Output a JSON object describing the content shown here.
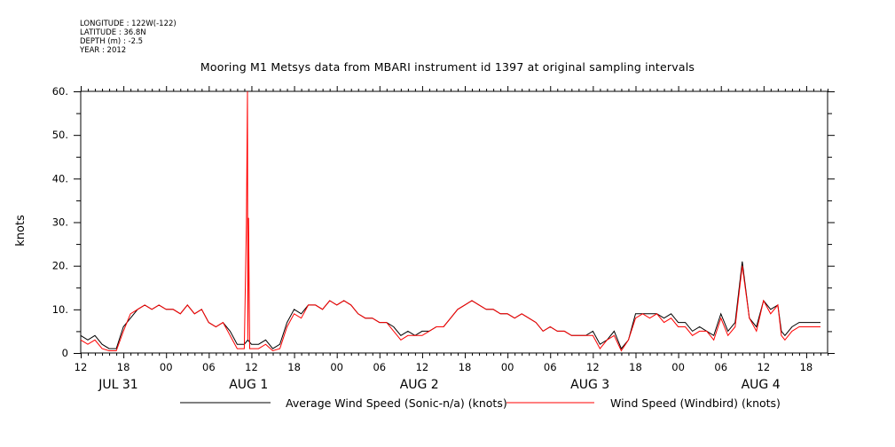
{
  "metadata": {
    "longitude": "LONGITUDE : 122W(-122)",
    "latitude": "LATITUDE : 36.8N",
    "depth": "DEPTH (m) : -2.5",
    "year": "YEAR : 2012"
  },
  "chart_data": {
    "type": "line",
    "title": "Mooring M1 Metsys data from MBARI instrument id 1397 at original sampling intervals",
    "ylabel": "knots",
    "xlabel": "",
    "ylim": [
      0,
      60
    ],
    "yticks": [
      0,
      10.0,
      20.0,
      30.0,
      40.0,
      50.0,
      60.0
    ],
    "ytick_labels": [
      "0",
      "10.",
      "20.",
      "30.",
      "40.",
      "50.",
      "60."
    ],
    "xlim_hours": [
      12,
      117
    ],
    "xticks": [
      {
        "hour": 12,
        "label": "12"
      },
      {
        "hour": 18,
        "label": "18"
      },
      {
        "hour": 24,
        "label": "00"
      },
      {
        "hour": 30,
        "label": "06"
      },
      {
        "hour": 36,
        "label": "12"
      },
      {
        "hour": 42,
        "label": "18"
      },
      {
        "hour": 48,
        "label": "00"
      },
      {
        "hour": 54,
        "label": "06"
      },
      {
        "hour": 60,
        "label": "12"
      },
      {
        "hour": 66,
        "label": "18"
      },
      {
        "hour": 72,
        "label": "00"
      },
      {
        "hour": 78,
        "label": "06"
      },
      {
        "hour": 84,
        "label": "12"
      },
      {
        "hour": 90,
        "label": "18"
      },
      {
        "hour": 96,
        "label": "00"
      },
      {
        "hour": 102,
        "label": "06"
      },
      {
        "hour": 108,
        "label": "12"
      },
      {
        "hour": 114,
        "label": "18"
      }
    ],
    "date_labels": [
      {
        "hour": 17.3,
        "label": "JUL 31"
      },
      {
        "hour": 35.6,
        "label": "AUG  1"
      },
      {
        "hour": 59.6,
        "label": "AUG  2"
      },
      {
        "hour": 83.6,
        "label": "AUG  3"
      },
      {
        "hour": 107.6,
        "label": "AUG  4"
      }
    ],
    "grid": false,
    "legend_position": "bottom",
    "series": [
      {
        "name": "Average Wind Speed (Sonic-n/a) (knots)",
        "color": "#000000",
        "x": [
          12,
          13,
          14,
          15,
          16,
          17,
          18,
          19,
          20,
          21,
          22,
          23,
          24,
          25,
          26,
          27,
          28,
          29,
          30,
          31,
          32,
          33,
          34,
          35,
          35.5,
          36,
          37,
          38,
          39,
          40,
          41,
          42,
          43,
          44,
          45,
          46,
          47,
          48,
          49,
          50,
          51,
          52,
          53,
          54,
          55,
          56,
          57,
          58,
          59,
          60,
          61,
          62,
          63,
          64,
          65,
          66,
          67,
          68,
          69,
          70,
          71,
          72,
          73,
          74,
          75,
          76,
          77,
          78,
          79,
          80,
          81,
          82,
          83,
          84,
          85,
          86,
          87,
          88,
          89,
          90,
          91,
          92,
          93,
          94,
          95,
          96,
          97,
          98,
          99,
          100,
          101,
          102,
          103,
          104,
          105,
          106,
          107,
          108,
          109,
          110,
          110.5,
          111,
          112,
          113,
          114,
          115,
          116
        ],
        "values": [
          4,
          3,
          4,
          2,
          1,
          1,
          6,
          8,
          10,
          11,
          10,
          11,
          10,
          10,
          9,
          11,
          9,
          10,
          7,
          6,
          7,
          5,
          2,
          2,
          3,
          2,
          2,
          3,
          1,
          2,
          7,
          10,
          9,
          11,
          11,
          10,
          12,
          11,
          12,
          11,
          9,
          8,
          8,
          7,
          7,
          6,
          4,
          5,
          4,
          5,
          5,
          6,
          6,
          8,
          10,
          11,
          12,
          11,
          10,
          10,
          9,
          9,
          8,
          9,
          8,
          7,
          5,
          6,
          5,
          5,
          4,
          4,
          4,
          5,
          2,
          3,
          5,
          1,
          3,
          9,
          9,
          9,
          9,
          8,
          9,
          7,
          7,
          5,
          6,
          5,
          4,
          9,
          5,
          7,
          21,
          8,
          6,
          12,
          10,
          11,
          5,
          4,
          6,
          7,
          7,
          7,
          7
        ]
      },
      {
        "name": "Wind Speed (Windbird) (knots)",
        "color": "#ff0000",
        "x": [
          12,
          13,
          14,
          15,
          16,
          17,
          18,
          19,
          20,
          21,
          22,
          23,
          24,
          25,
          26,
          27,
          28,
          29,
          30,
          31,
          32,
          33,
          34,
          35,
          35.3,
          35.45,
          35.5,
          35.6,
          35.75,
          36,
          37,
          38,
          39,
          40,
          41,
          42,
          43,
          44,
          45,
          46,
          47,
          48,
          49,
          50,
          51,
          52,
          53,
          54,
          55,
          56,
          57,
          58,
          59,
          60,
          61,
          62,
          63,
          64,
          65,
          66,
          67,
          68,
          69,
          70,
          71,
          72,
          73,
          74,
          75,
          76,
          77,
          78,
          79,
          80,
          81,
          82,
          83,
          84,
          85,
          86,
          87,
          88,
          89,
          90,
          91,
          92,
          93,
          94,
          95,
          96,
          97,
          98,
          99,
          100,
          101,
          102,
          103,
          104,
          105,
          106,
          107,
          108,
          109,
          110,
          110.5,
          111,
          112,
          113,
          114,
          115,
          116
        ],
        "values": [
          3,
          2,
          3,
          1,
          0.5,
          0.5,
          5,
          9,
          10,
          11,
          10,
          11,
          10,
          10,
          9,
          11,
          9,
          10,
          7,
          6,
          7,
          4,
          1,
          1,
          30,
          60,
          3,
          31,
          1,
          1,
          1,
          2,
          0.5,
          1,
          6,
          9,
          8,
          11,
          11,
          10,
          12,
          11,
          12,
          11,
          9,
          8,
          8,
          7,
          7,
          5,
          3,
          4,
          4,
          4,
          5,
          6,
          6,
          8,
          10,
          11,
          12,
          11,
          10,
          10,
          9,
          9,
          8,
          9,
          8,
          7,
          5,
          6,
          5,
          5,
          4,
          4,
          4,
          4,
          1,
          3,
          4,
          0.5,
          3,
          8,
          9,
          8,
          9,
          7,
          8,
          6,
          6,
          4,
          5,
          5,
          3,
          8,
          4,
          6,
          20,
          8,
          5,
          12,
          9,
          11,
          4,
          3,
          5,
          6,
          6,
          6,
          6
        ]
      }
    ]
  }
}
